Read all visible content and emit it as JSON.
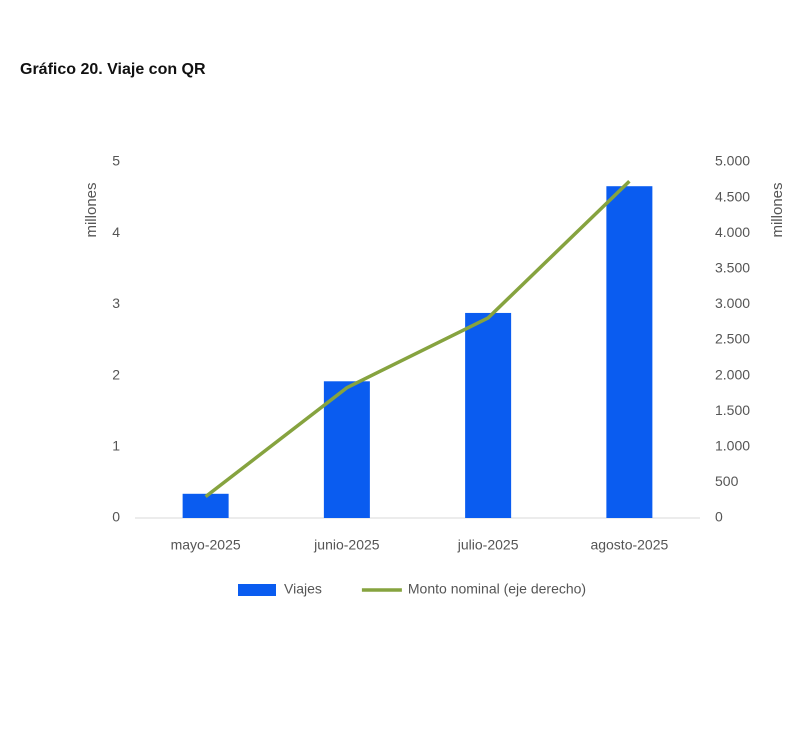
{
  "chart_data": {
    "type": "bar",
    "title": "Gráfico 20. Viaje con QR",
    "categories": [
      "mayo-2025",
      "junio-2025",
      "julio-2025",
      "agosto-2025"
    ],
    "ylabel": "millones",
    "y2label": "millones",
    "ylim": [
      0,
      5
    ],
    "yticks": [
      0,
      1,
      2,
      3,
      4,
      5
    ],
    "y2lim": [
      0,
      5000
    ],
    "y2ticks": [
      0,
      500,
      {
        "value": 1000,
        "label": "1.000"
      },
      {
        "value": 1500,
        "label": "1.500"
      },
      {
        "value": 2000,
        "label": "2.000"
      },
      {
        "value": 2500,
        "label": "2.500"
      },
      {
        "value": 3000,
        "label": "3.000"
      },
      {
        "value": 3500,
        "label": "3.500"
      },
      {
        "value": 4000,
        "label": "4.000"
      },
      {
        "value": 4500,
        "label": "4.500"
      },
      {
        "value": 5000,
        "label": "5.000"
      }
    ],
    "series": [
      {
        "name": "Viajes",
        "type": "bar",
        "color": "#0a5cf0",
        "values": [
          0.34,
          1.92,
          2.88,
          4.66
        ]
      },
      {
        "name": "Monto nominal (eje derecho)",
        "type": "line",
        "axis": "y2",
        "color": "#86a33f",
        "values": [
          300,
          1830,
          2810,
          4730
        ]
      }
    ]
  }
}
